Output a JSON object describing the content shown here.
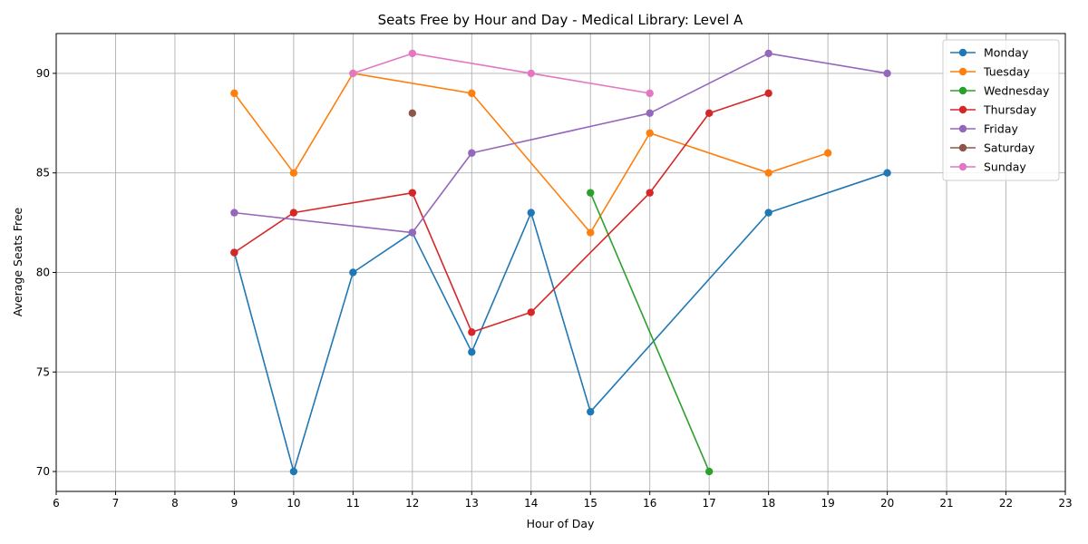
{
  "chart_data": {
    "type": "line",
    "title": "Seats Free by Hour and Day - Medical Library: Level A",
    "xlabel": "Hour of Day",
    "ylabel": "Average Seats Free",
    "xlim": [
      6,
      23
    ],
    "ylim": [
      69,
      92
    ],
    "xticks": [
      6,
      7,
      8,
      9,
      10,
      11,
      12,
      13,
      14,
      15,
      16,
      17,
      18,
      19,
      20,
      21,
      22,
      23
    ],
    "yticks": [
      70,
      75,
      80,
      85,
      90
    ],
    "grid": true,
    "legend_position": "top-right",
    "series": [
      {
        "name": "Monday",
        "color": "#1f77b4",
        "x": [
          9,
          10,
          11,
          12,
          13,
          14,
          15,
          18,
          20
        ],
        "y": [
          81,
          70,
          80,
          82,
          76,
          83,
          73,
          83,
          85
        ]
      },
      {
        "name": "Tuesday",
        "color": "#ff7f0e",
        "x": [
          9,
          10,
          11,
          13,
          15,
          16,
          18,
          19
        ],
        "y": [
          89,
          85,
          90,
          89,
          82,
          87,
          85,
          86
        ]
      },
      {
        "name": "Wednesday",
        "color": "#2ca02c",
        "x": [
          15,
          17
        ],
        "y": [
          84,
          70
        ]
      },
      {
        "name": "Thursday",
        "color": "#d62728",
        "x": [
          9,
          10,
          12,
          13,
          14,
          16,
          17,
          18
        ],
        "y": [
          81,
          83,
          84,
          77,
          78,
          84,
          88,
          89
        ]
      },
      {
        "name": "Friday",
        "color": "#9467bd",
        "x": [
          9,
          12,
          13,
          16,
          18,
          20
        ],
        "y": [
          83,
          82,
          86,
          88,
          91,
          90
        ]
      },
      {
        "name": "Saturday",
        "color": "#8c564b",
        "x": [
          12
        ],
        "y": [
          88
        ]
      },
      {
        "name": "Sunday",
        "color": "#e377c2",
        "x": [
          11,
          12,
          14,
          16
        ],
        "y": [
          90,
          91,
          90,
          89
        ]
      }
    ]
  }
}
